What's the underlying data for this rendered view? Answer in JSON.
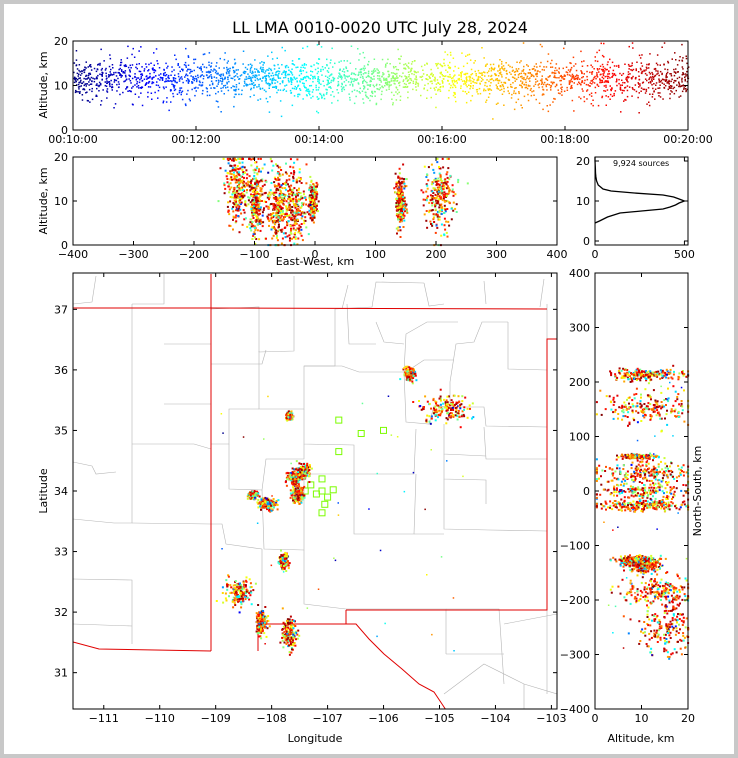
{
  "chart_data": [
    {
      "type": "scatter",
      "panel": "time-altitude",
      "title": "LL LMA 0010-0020 UTC July 28, 2024",
      "xlabel": "",
      "ylabel": "Altitude, km",
      "x_ticks": [
        "00:10:00",
        "00:12:00",
        "00:14:00",
        "00:16:00",
        "00:18:00",
        "00:20:00"
      ],
      "xlim_minutes": [
        0,
        10
      ],
      "y_ticks": [
        0,
        10,
        20
      ],
      "ylim": [
        0,
        20
      ],
      "color_by": "time",
      "colormap": "jet",
      "clusters": [
        {
          "t_minutes": [
            0.0,
            10.0
          ],
          "altitude_km": [
            7,
            15
          ]
        }
      ]
    },
    {
      "type": "scatter",
      "panel": "east-west-altitude",
      "xlabel": "East-West, km",
      "ylabel": "Altitude, km",
      "x_ticks": [
        -400,
        -300,
        -200,
        -100,
        0,
        100,
        200,
        300,
        400
      ],
      "xlim": [
        -400,
        400
      ],
      "y_ticks": [
        0,
        10,
        20
      ],
      "ylim": [
        0,
        20
      ],
      "clusters": [
        {
          "x_km": -130,
          "alt_km": 14,
          "spread": [
            10,
            4
          ]
        },
        {
          "x_km": -100,
          "alt_km": 10,
          "spread": [
            6,
            4
          ]
        },
        {
          "x_km": -65,
          "alt_km": 9,
          "spread": [
            8,
            4
          ]
        },
        {
          "x_km": -35,
          "alt_km": 9,
          "spread": [
            10,
            4
          ]
        },
        {
          "x_km": -5,
          "alt_km": 10,
          "spread": [
            3,
            2
          ]
        },
        {
          "x_km": 140,
          "alt_km": 10,
          "spread": [
            4,
            3
          ]
        },
        {
          "x_km": 205,
          "alt_km": 11,
          "spread": [
            12,
            4
          ]
        }
      ]
    },
    {
      "type": "line",
      "panel": "altitude-histogram",
      "annotation": "9,924 sources",
      "x_ticks": [
        0,
        500
      ],
      "xlim": [
        0,
        520
      ],
      "y_ticks": [
        0,
        10,
        20
      ],
      "ylim": [
        -1,
        21
      ],
      "profile": {
        "altitude_km": [
          4.5,
          5,
          6,
          7,
          7.5,
          8,
          8.5,
          9,
          9.5,
          10,
          10.5,
          11,
          11.5,
          12,
          12.5,
          13,
          14,
          15,
          16,
          17,
          18,
          19,
          20,
          21
        ],
        "count": [
          0,
          25,
          70,
          140,
          260,
          380,
          420,
          450,
          470,
          500,
          470,
          440,
          380,
          220,
          90,
          45,
          18,
          9,
          5,
          3,
          2,
          1,
          0,
          0
        ]
      }
    },
    {
      "type": "scatter",
      "panel": "plan-view-map",
      "xlabel": "Longitude",
      "ylabel": "Latitude",
      "x_ticks": [
        -111,
        -110,
        -109,
        -108,
        -107,
        -106,
        -105,
        -104,
        -103
      ],
      "xlim": [
        -111.55,
        -102.9
      ],
      "y_ticks": [
        31,
        32,
        33,
        34,
        35,
        36,
        37
      ],
      "ylim": [
        30.4,
        37.6
      ],
      "station_color": "#7cfc00",
      "stations": [
        {
          "lon": -106.8,
          "lat": 35.17
        },
        {
          "lon": -106.4,
          "lat": 34.95
        },
        {
          "lon": -106.0,
          "lat": 35.0
        },
        {
          "lon": -106.8,
          "lat": 34.65
        },
        {
          "lon": -107.1,
          "lat": 34.2
        },
        {
          "lon": -107.3,
          "lat": 34.1
        },
        {
          "lon": -107.1,
          "lat": 34.0
        },
        {
          "lon": -106.9,
          "lat": 34.02
        },
        {
          "lon": -107.4,
          "lat": 34.0
        },
        {
          "lon": -107.2,
          "lat": 33.95
        },
        {
          "lon": -107.0,
          "lat": 33.9
        },
        {
          "lon": -107.05,
          "lat": 33.78
        },
        {
          "lon": -107.1,
          "lat": 33.64
        }
      ],
      "clusters": [
        {
          "lon": -105.55,
          "lat": 35.95,
          "spread": [
            0.05,
            0.05
          ]
        },
        {
          "lon": -104.9,
          "lat": 35.38,
          "spread": [
            0.2,
            0.12
          ]
        },
        {
          "lon": -107.7,
          "lat": 35.25,
          "spread": [
            0.03,
            0.03
          ]
        },
        {
          "lon": -107.45,
          "lat": 34.35,
          "spread": [
            0.05,
            0.05
          ]
        },
        {
          "lon": -107.6,
          "lat": 34.22,
          "spread": [
            0.06,
            0.06
          ]
        },
        {
          "lon": -107.55,
          "lat": 33.95,
          "spread": [
            0.06,
            0.06
          ]
        },
        {
          "lon": -108.35,
          "lat": 33.95,
          "spread": [
            0.04,
            0.03
          ]
        },
        {
          "lon": -108.1,
          "lat": 33.8,
          "spread": [
            0.08,
            0.05
          ]
        },
        {
          "lon": -107.8,
          "lat": 32.85,
          "spread": [
            0.04,
            0.06
          ]
        },
        {
          "lon": -108.6,
          "lat": 32.35,
          "spread": [
            0.12,
            0.1
          ]
        },
        {
          "lon": -108.2,
          "lat": 31.85,
          "spread": [
            0.05,
            0.1
          ]
        },
        {
          "lon": -107.7,
          "lat": 31.65,
          "spread": [
            0.06,
            0.12
          ]
        }
      ]
    },
    {
      "type": "scatter",
      "panel": "altitude-north-south",
      "xlabel": "Altitude, km",
      "ylabel": "North-South, km",
      "x_ticks": [
        0,
        10,
        20
      ],
      "xlim": [
        0,
        20
      ],
      "y_ticks": [
        -400,
        -300,
        -200,
        -100,
        0,
        100,
        200,
        300,
        400
      ],
      "ylim": [
        -400,
        400
      ],
      "clusters": [
        {
          "alt_km": 11,
          "ns_km": 215,
          "spread": [
            4,
            5
          ]
        },
        {
          "alt_km": 11,
          "ns_km": 155,
          "spread": [
            5,
            14
          ]
        },
        {
          "alt_km": 9,
          "ns_km": 65,
          "spread": [
            2,
            2
          ]
        },
        {
          "alt_km": 10,
          "ns_km": 35,
          "spread": [
            5,
            10
          ]
        },
        {
          "alt_km": 10,
          "ns_km": 0,
          "spread": [
            5,
            12
          ]
        },
        {
          "alt_km": 10,
          "ns_km": -25,
          "spread": [
            5,
            5
          ]
        },
        {
          "alt_km": 9,
          "ns_km": -125,
          "spread": [
            2,
            4
          ]
        },
        {
          "alt_km": 10,
          "ns_km": -135,
          "spread": [
            2,
            6
          ]
        },
        {
          "alt_km": 14,
          "ns_km": -180,
          "spread": [
            4,
            12
          ]
        },
        {
          "alt_km": 15,
          "ns_km": -250,
          "spread": [
            3,
            25
          ]
        }
      ]
    }
  ]
}
